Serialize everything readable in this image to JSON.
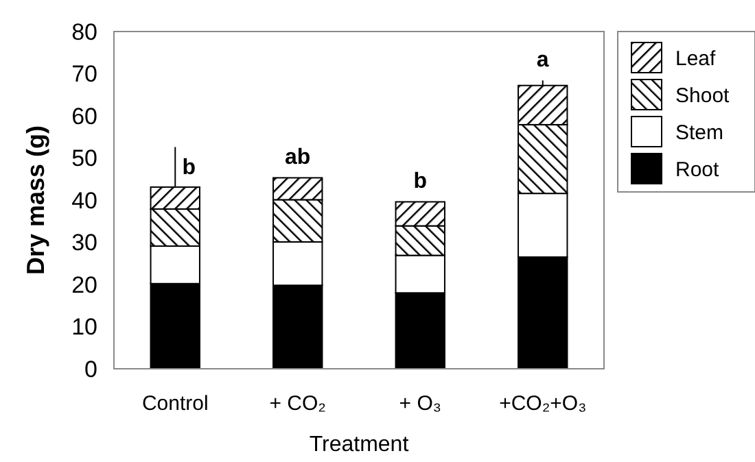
{
  "chart_data": {
    "type": "bar",
    "stacked": true,
    "xlabel": "Treatment",
    "ylabel": "Dry mass (g)",
    "categories": [
      "Control",
      "+ CO₂",
      "+ O₃",
      "+CO₂+O₃"
    ],
    "series": [
      {
        "name": "Root",
        "color": "#000000",
        "values": [
          20.2,
          19.8,
          18.0,
          26.5
        ]
      },
      {
        "name": "Stem",
        "color": "#ffffff",
        "values": [
          8.9,
          10.3,
          8.9,
          15.1
        ]
      },
      {
        "name": "Shoot",
        "color": "#000000",
        "values": [
          8.8,
          10.0,
          7.0,
          16.3
        ]
      },
      {
        "name": "Leaf",
        "color": "#000000",
        "values": [
          5.2,
          5.2,
          5.7,
          9.3
        ],
        "errors": [
          [
            43.1,
            52.6
          ],
          null,
          null,
          [
            67.2,
            68.4
          ]
        ]
      }
    ],
    "ylim": [
      0,
      80
    ],
    "yticks": [
      0,
      10,
      20,
      30,
      40,
      50,
      60,
      70,
      80
    ],
    "grid": false,
    "legend": "right",
    "annotations": [
      "b",
      "ab",
      "b",
      "a"
    ]
  }
}
